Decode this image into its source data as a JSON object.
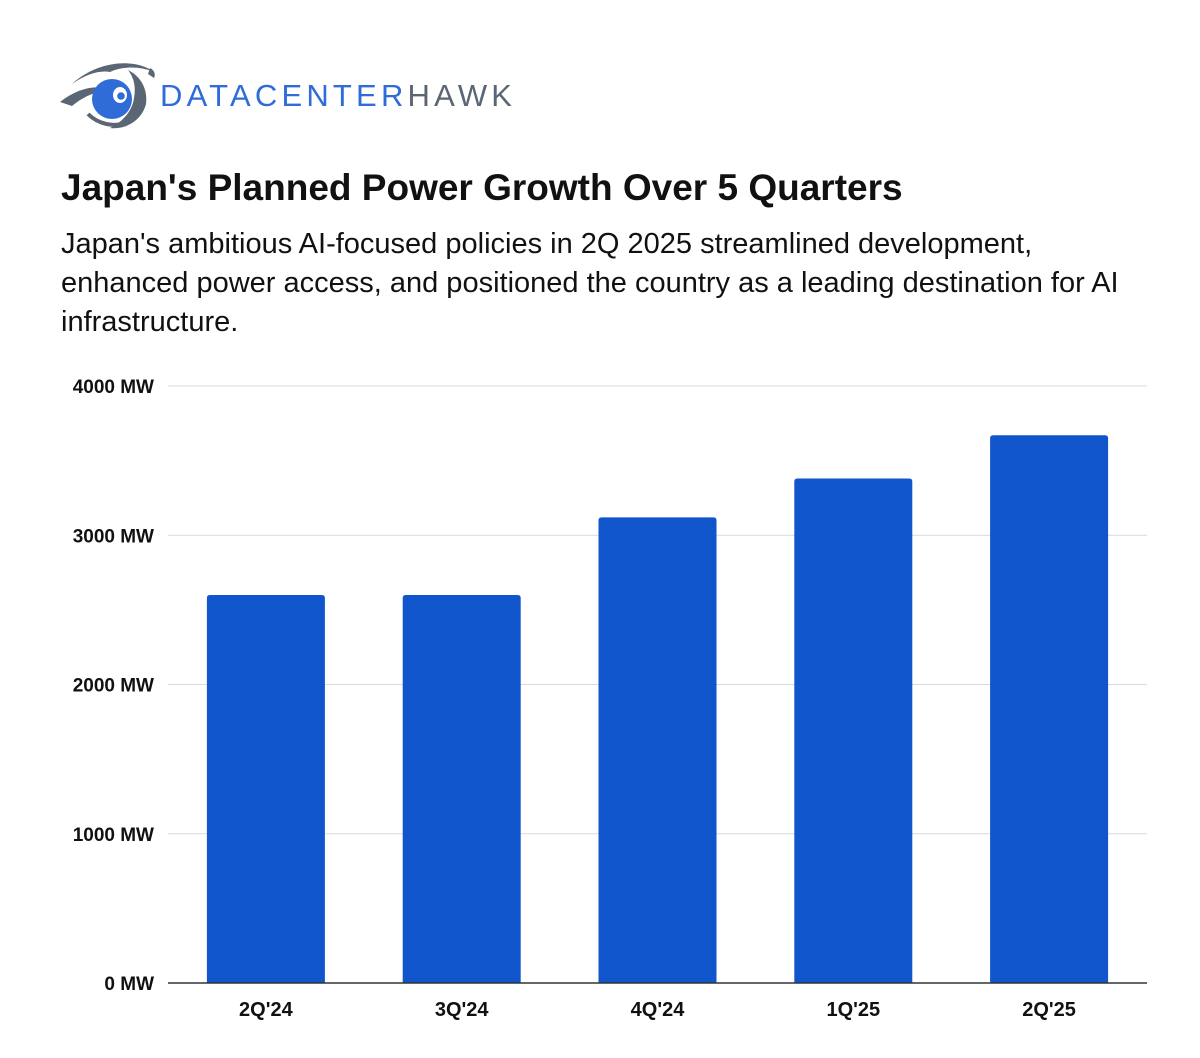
{
  "brand": {
    "name_part1": "DATACENTER",
    "name_part2": "HAWK",
    "logo_icon": "hawk-eye-icon",
    "colors": {
      "primary_blue": "#2f6cd8",
      "dark_gray": "#5b6675"
    }
  },
  "header": {
    "title": "Japan's Planned Power Growth Over 5 Quarters",
    "subtitle": "Japan's ambitious AI-focused policies in 2Q 2025 streamlined development, enhanced power access, and positioned the country as a leading destination for AI infrastructure."
  },
  "chart_data": {
    "type": "bar",
    "title": "Japan's Planned Power Growth Over 5 Quarters",
    "subtitle": "Japan's ambitious AI-focused policies in 2Q 2025 streamlined development, enhanced power access, and positioned the country as a leading destination for AI infrastructure.",
    "categories": [
      "2Q'24",
      "3Q'24",
      "4Q'24",
      "1Q'25",
      "2Q'25"
    ],
    "values": [
      2600,
      2600,
      3120,
      3380,
      3670
    ],
    "xlabel": "",
    "ylabel": "",
    "ylim": [
      0,
      4000
    ],
    "yticks": [
      0,
      1000,
      2000,
      3000,
      4000
    ],
    "ytick_labels": [
      "0 MW",
      "1000 MW",
      "2000 MW",
      "3000 MW",
      "4000 MW"
    ],
    "grid": true,
    "legend": "none",
    "bar_color": "#1155cc",
    "grid_color": "#d9d9d9",
    "axis_color": "#333333"
  }
}
